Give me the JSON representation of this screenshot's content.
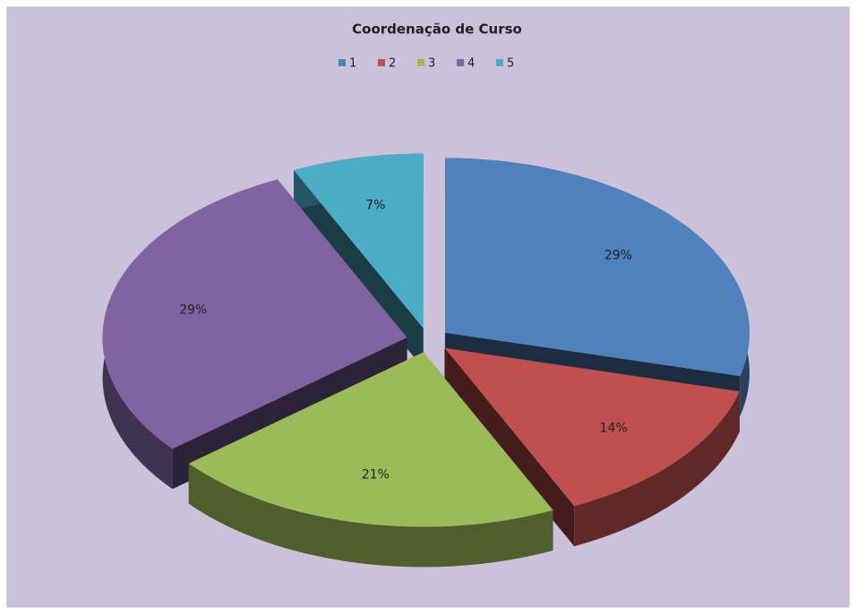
{
  "chart_data": {
    "type": "pie",
    "title": "Coordenação de Curso",
    "categories": [
      "1",
      "2",
      "3",
      "4",
      "5"
    ],
    "values": [
      29,
      14,
      21,
      29,
      7
    ],
    "value_labels": [
      "29%",
      "14%",
      "21%",
      "29%",
      "7%"
    ],
    "colors": [
      "#4f81bd",
      "#c0504d",
      "#9bbb59",
      "#8064a2",
      "#4bacc6"
    ],
    "legend": "top"
  }
}
